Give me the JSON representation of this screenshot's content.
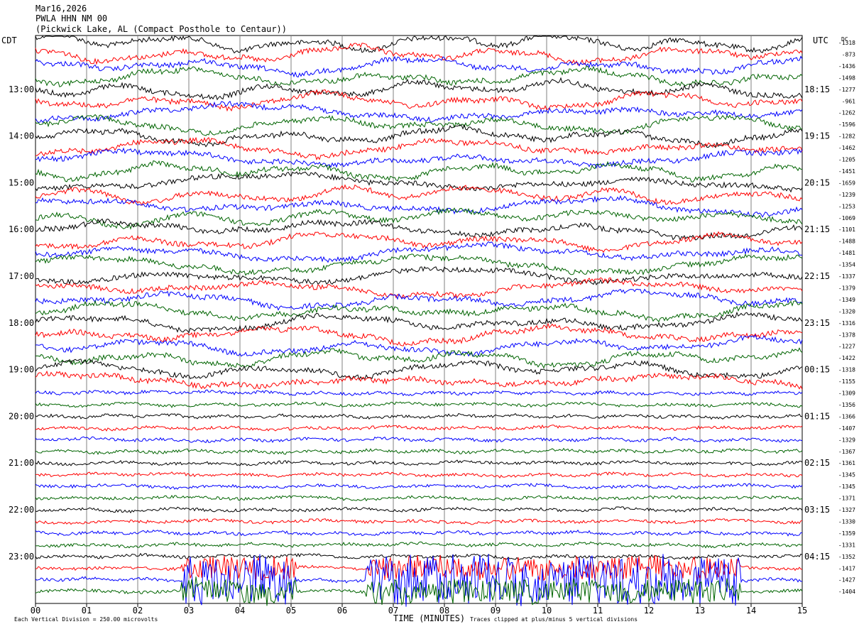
{
  "header": {
    "date": "Mar16,2026",
    "station": "PWLA HHN NM 00",
    "location": "(Pickwick Lake, AL (Compact Posthole to Centaur))"
  },
  "labels": {
    "left_zone": "CDT",
    "right_zone": "UTC",
    "dc_header": "DC",
    "x_axis_title": "TIME (MINUTES)",
    "footer_left": "Each Vertical Division =  250.00 microvolts",
    "footer_right": "Traces clipped at plus/minus 5 vertical divisions"
  },
  "colors": {
    "background": "#ffffff",
    "grid": "#808080",
    "text": "#000000",
    "trace_cycle": [
      "#000000",
      "#ff0000",
      "#0000ff",
      "#006400"
    ]
  },
  "chart_data": {
    "type": "line",
    "subtype": "helicorder",
    "x_ticks": [
      "00",
      "01",
      "02",
      "03",
      "04",
      "05",
      "06",
      "07",
      "08",
      "09",
      "10",
      "11",
      "12",
      "13",
      "14",
      "15"
    ],
    "xlim": [
      0,
      15
    ],
    "rows_per_hour": 4,
    "trace_count": 48,
    "local_hour_labels": [
      "13:00",
      "14:00",
      "15:00",
      "16:00",
      "17:00",
      "18:00",
      "19:00",
      "20:00",
      "21:00",
      "22:00",
      "23:00"
    ],
    "utc_hour_labels": [
      "18:15",
      "19:15",
      "20:15",
      "21:15",
      "22:15",
      "23:15",
      "00:15",
      "01:15",
      "02:15",
      "03:15",
      "04:15"
    ],
    "dc_offsets": [
      -1318,
      -873,
      -1436,
      -1498,
      -1277,
      -961,
      -1262,
      -1596,
      -1282,
      -1462,
      -1205,
      -1451,
      -1659,
      -1239,
      -1253,
      -1069,
      -1101,
      -1488,
      -1481,
      -1354,
      -1337,
      -1379,
      -1349,
      -1320,
      -1316,
      -1378,
      -1227,
      -1422,
      -1318,
      -1155,
      -1309,
      -1356,
      -1366,
      -1407,
      -1329,
      -1367,
      -1361,
      -1345,
      -1345,
      -1371,
      -1327,
      -1330,
      -1359,
      -1331,
      -1352,
      -1417,
      -1427,
      -1404
    ]
  }
}
